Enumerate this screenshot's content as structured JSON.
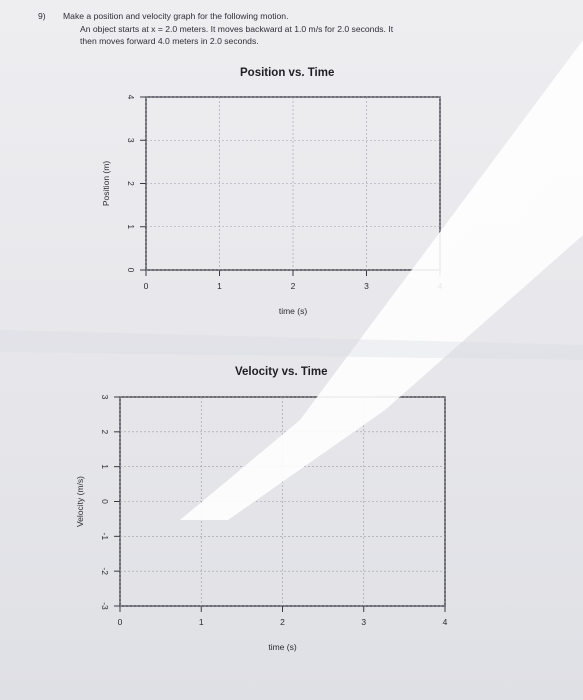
{
  "question": {
    "number": "9)",
    "prompt": "Make a position and velocity graph for the following motion.",
    "line1": "An object starts at x = 2.0 meters.  It moves backward at 1.0 m/s for 2.0 seconds.  It",
    "line2": "then moves forward 4.0 meters in 2.0 seconds."
  },
  "chart_data": [
    {
      "type": "line",
      "title": "Position vs. Time",
      "xlabel": "time (s)",
      "ylabel": "Position (m)",
      "x_ticks": [
        "0",
        "1",
        "2",
        "3",
        "4"
      ],
      "y_ticks": [
        "0",
        "1",
        "2",
        "3",
        "4"
      ],
      "xlim": [
        0,
        4
      ],
      "ylim": [
        0,
        4
      ],
      "grid": true,
      "series": []
    },
    {
      "type": "line",
      "title": "Velocity vs. Time",
      "xlabel": "time (s)",
      "ylabel": "Velocity (m/s)",
      "x_ticks": [
        "0",
        "1",
        "2",
        "3",
        "4"
      ],
      "y_ticks": [
        "-3",
        "-2",
        "-1",
        "0",
        "1",
        "2",
        "3"
      ],
      "xlim": [
        0,
        4
      ],
      "ylim": [
        -3,
        3
      ],
      "grid": true,
      "series": []
    }
  ],
  "colors": {
    "paper": "#e9e9ec",
    "axis": "#3a3a44",
    "grid": "#9a9aa6"
  }
}
